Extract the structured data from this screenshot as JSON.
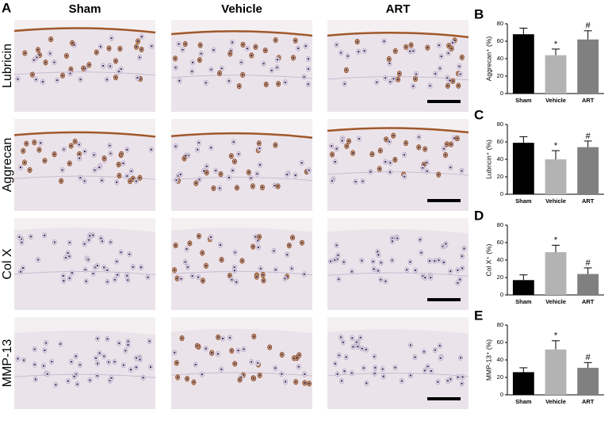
{
  "panel_a": {
    "label": "A",
    "columns": [
      "Sham",
      "Vehicle",
      "ART"
    ],
    "rows": [
      "Lubricin",
      "Aggrecan",
      "Col X",
      "MMP-13"
    ]
  },
  "chart_data": [
    {
      "type": "bar",
      "panel": "B",
      "ylabel": "Aggrecan⁺ (%)",
      "categories": [
        "Sham",
        "Vehicle",
        "ART"
      ],
      "values": [
        68,
        44,
        62
      ],
      "errors": [
        7,
        7,
        10
      ],
      "annotations": [
        null,
        "*",
        "#"
      ],
      "colors": [
        "#000000",
        "#b3b3b3",
        "#808080"
      ],
      "ylim": [
        0,
        80
      ],
      "yticks": [
        0,
        20,
        40,
        60,
        80
      ]
    },
    {
      "type": "bar",
      "panel": "C",
      "ylabel": "Lubricin⁺ (%)",
      "categories": [
        "Sham",
        "Vehicle",
        "ART"
      ],
      "values": [
        59,
        40,
        54
      ],
      "errors": [
        7,
        10,
        7
      ],
      "annotations": [
        null,
        "*",
        "#"
      ],
      "colors": [
        "#000000",
        "#b3b3b3",
        "#808080"
      ],
      "ylim": [
        0,
        80
      ],
      "yticks": [
        0,
        20,
        40,
        60,
        80
      ]
    },
    {
      "type": "bar",
      "panel": "D",
      "ylabel": "Col X⁺ (%)",
      "categories": [
        "Sham",
        "Vehicle",
        "ART"
      ],
      "values": [
        17,
        49,
        24
      ],
      "errors": [
        6,
        8,
        7
      ],
      "annotations": [
        null,
        "*",
        "#"
      ],
      "colors": [
        "#000000",
        "#b3b3b3",
        "#808080"
      ],
      "ylim": [
        0,
        80
      ],
      "yticks": [
        0,
        20,
        40,
        60,
        80
      ]
    },
    {
      "type": "bar",
      "panel": "E",
      "ylabel": "MMP-13⁺ (%)",
      "categories": [
        "Sham",
        "Vehicle",
        "ART"
      ],
      "values": [
        26,
        52,
        31
      ],
      "errors": [
        5,
        10,
        6
      ],
      "annotations": [
        null,
        "*",
        "#"
      ],
      "colors": [
        "#000000",
        "#b3b3b3",
        "#808080"
      ],
      "ylim": [
        0,
        80
      ],
      "yticks": [
        0,
        20,
        40,
        60,
        80
      ]
    }
  ]
}
